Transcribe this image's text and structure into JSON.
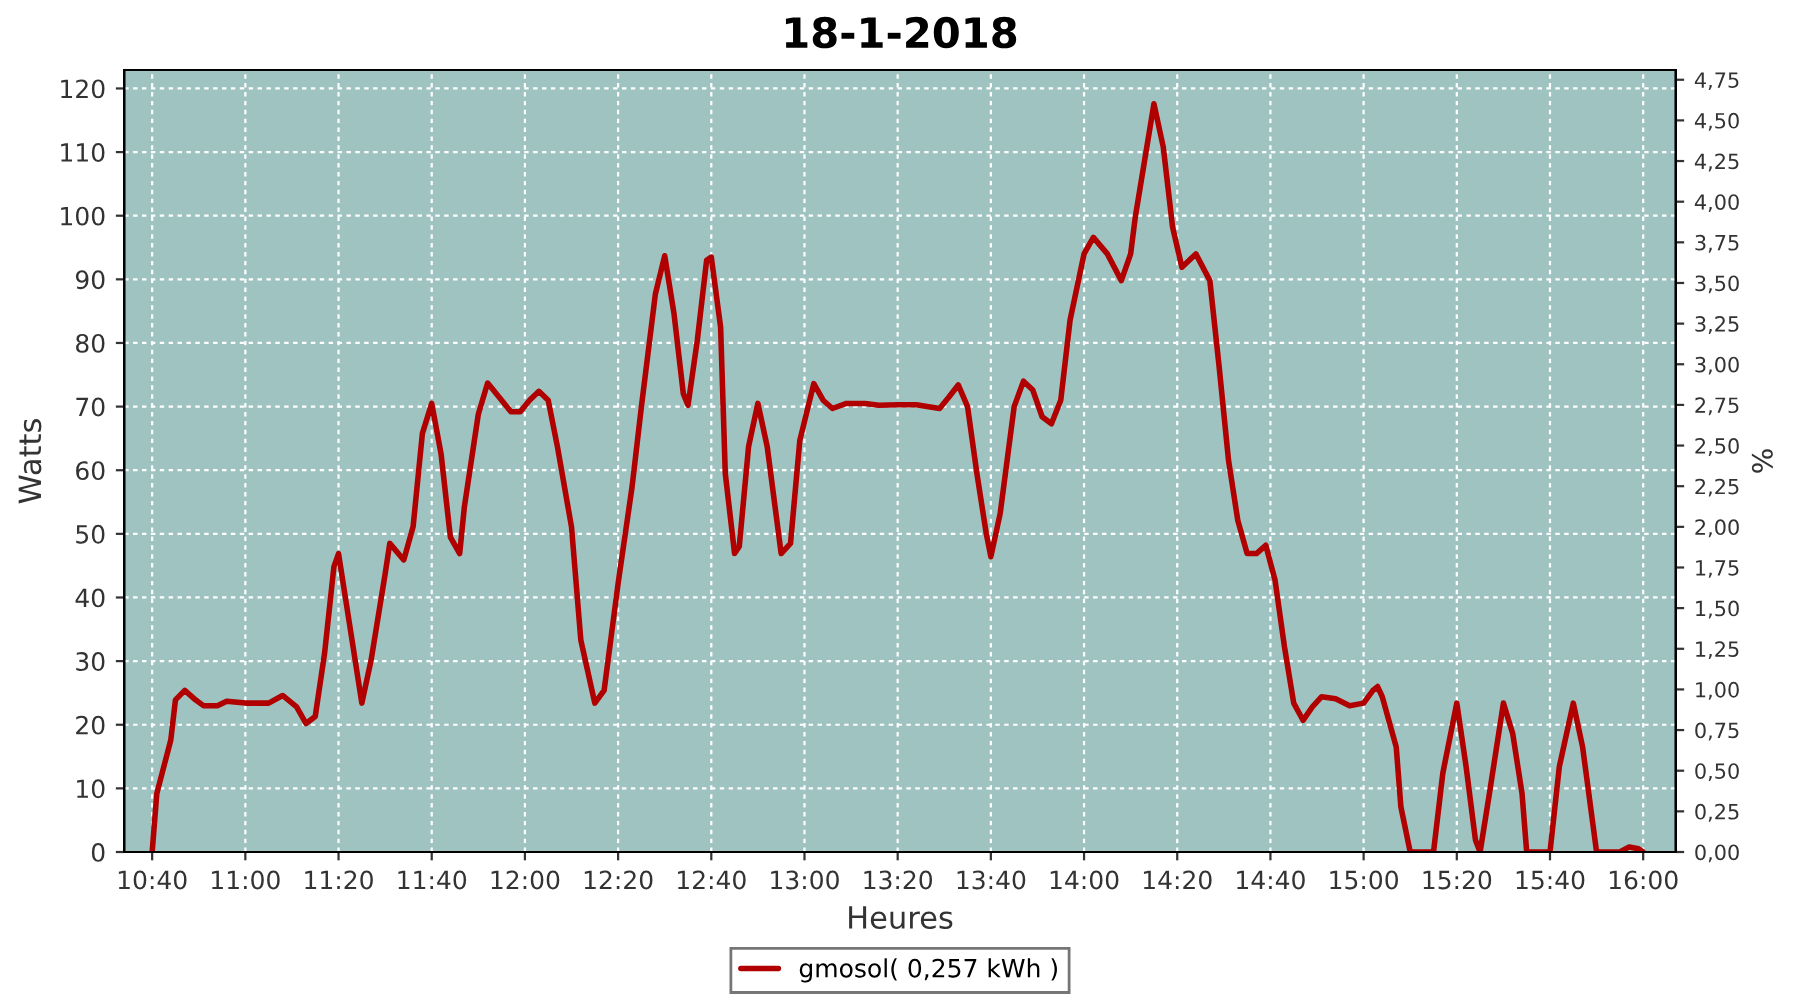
{
  "chart_data": {
    "type": "line",
    "title": "18-1-2018",
    "xlabel": "Heures",
    "ylabel": "Watts",
    "y2label": "%",
    "x": [
      "2018-01-18T10:40",
      "2018-01-18T10:41",
      "2018-01-18T10:44",
      "2018-01-18T10:45",
      "2018-01-18T10:47",
      "2018-01-18T10:49",
      "2018-01-18T10:51",
      "2018-01-18T10:54",
      "2018-01-18T10:56",
      "2018-01-18T11:00",
      "2018-01-18T11:05",
      "2018-01-18T11:08",
      "2018-01-18T11:11",
      "2018-01-18T11:13",
      "2018-01-18T11:15",
      "2018-01-18T11:17",
      "2018-01-18T11:19",
      "2018-01-18T11:20",
      "2018-01-18T11:22",
      "2018-01-18T11:25",
      "2018-01-18T11:27",
      "2018-01-18T11:30",
      "2018-01-18T11:31",
      "2018-01-18T11:34",
      "2018-01-18T11:36",
      "2018-01-18T11:38",
      "2018-01-18T11:40",
      "2018-01-18T11:42",
      "2018-01-18T11:44",
      "2018-01-18T11:46",
      "2018-01-18T11:47",
      "2018-01-18T11:50",
      "2018-01-18T11:52",
      "2018-01-18T11:55",
      "2018-01-18T11:57",
      "2018-01-18T11:59",
      "2018-01-18T12:01",
      "2018-01-18T12:03",
      "2018-01-18T12:05",
      "2018-01-18T12:07",
      "2018-01-18T12:10",
      "2018-01-18T12:12",
      "2018-01-18T12:15",
      "2018-01-18T12:17",
      "2018-01-18T12:20",
      "2018-01-18T12:23",
      "2018-01-18T12:25",
      "2018-01-18T12:28",
      "2018-01-18T12:30",
      "2018-01-18T12:32",
      "2018-01-18T12:34",
      "2018-01-18T12:35",
      "2018-01-18T12:37",
      "2018-01-18T12:39",
      "2018-01-18T12:40",
      "2018-01-18T12:42",
      "2018-01-18T12:43",
      "2018-01-18T12:45",
      "2018-01-18T12:46",
      "2018-01-18T12:48",
      "2018-01-18T12:50",
      "2018-01-18T12:52",
      "2018-01-18T12:55",
      "2018-01-18T12:57",
      "2018-01-18T12:59",
      "2018-01-18T13:02",
      "2018-01-18T13:04",
      "2018-01-18T13:06",
      "2018-01-18T13:09",
      "2018-01-18T13:13",
      "2018-01-18T13:16",
      "2018-01-18T13:20",
      "2018-01-18T13:24",
      "2018-01-18T13:29",
      "2018-01-18T13:31",
      "2018-01-18T13:33",
      "2018-01-18T13:35",
      "2018-01-18T13:37",
      "2018-01-18T13:39",
      "2018-01-18T13:40",
      "2018-01-18T13:42",
      "2018-01-18T13:45",
      "2018-01-18T13:47",
      "2018-01-18T13:49",
      "2018-01-18T13:51",
      "2018-01-18T13:53",
      "2018-01-18T13:55",
      "2018-01-18T13:57",
      "2018-01-18T14:00",
      "2018-01-18T14:02",
      "2018-01-18T14:05",
      "2018-01-18T14:08",
      "2018-01-18T14:10",
      "2018-01-18T14:11",
      "2018-01-18T14:15",
      "2018-01-18T14:17",
      "2018-01-18T14:19",
      "2018-01-18T14:21",
      "2018-01-18T14:24",
      "2018-01-18T14:27",
      "2018-01-18T14:29",
      "2018-01-18T14:31",
      "2018-01-18T14:33",
      "2018-01-18T14:35",
      "2018-01-18T14:37",
      "2018-01-18T14:39",
      "2018-01-18T14:41",
      "2018-01-18T14:43",
      "2018-01-18T14:45",
      "2018-01-18T14:47",
      "2018-01-18T14:49",
      "2018-01-18T14:51",
      "2018-01-18T14:54",
      "2018-01-18T14:57",
      "2018-01-18T15:00",
      "2018-01-18T15:02",
      "2018-01-18T15:03",
      "2018-01-18T15:04",
      "2018-01-18T15:07",
      "2018-01-18T15:08",
      "2018-01-18T15:10",
      "2018-01-18T15:15",
      "2018-01-18T15:17",
      "2018-01-18T15:20",
      "2018-01-18T15:22",
      "2018-01-18T15:24",
      "2018-01-18T15:25",
      "2018-01-18T15:27",
      "2018-01-18T15:30",
      "2018-01-18T15:32",
      "2018-01-18T15:34",
      "2018-01-18T15:35",
      "2018-01-18T15:40",
      "2018-01-18T15:42",
      "2018-01-18T15:45",
      "2018-01-18T15:47",
      "2018-01-18T15:50",
      "2018-01-18T15:55",
      "2018-01-18T15:57",
      "2018-01-18T15:59",
      "2018-01-18T16:00"
    ],
    "series": [
      {
        "name": "gmosol( 0,257 kWh )",
        "color": "#b00000",
        "values": [
          0,
          9.2,
          17.6,
          23.9,
          25.4,
          24.1,
          23,
          23,
          23.7,
          23.4,
          23.4,
          24.6,
          22.8,
          20.2,
          21.3,
          31.2,
          44.8,
          46.9,
          37.5,
          23.4,
          30.2,
          43.7,
          48.5,
          45.9,
          51.1,
          65.8,
          70.5,
          62.6,
          49.5,
          46.9,
          54.2,
          68.8,
          73.7,
          71,
          69.2,
          69.2,
          71,
          72.4,
          71,
          63.6,
          51.1,
          33.3,
          23.4,
          25.4,
          42.2,
          57.4,
          70,
          87.7,
          93.7,
          84.6,
          72,
          70.2,
          80.4,
          93,
          93.5,
          82.5,
          59.5,
          46.9,
          48,
          63.7,
          70.5,
          63.7,
          46.9,
          48.5,
          64.7,
          73.6,
          71,
          69.7,
          70.5,
          70.5,
          70.2,
          70.3,
          70.3,
          69.7,
          71.5,
          73.4,
          70,
          59.5,
          50.1,
          46.4,
          53.2,
          70,
          74,
          72.6,
          68.4,
          67.3,
          71,
          83.6,
          94,
          96.6,
          94,
          89.8,
          94,
          99.8,
          117.6,
          110.8,
          98.2,
          91.9,
          94,
          89.8,
          76.2,
          61.6,
          52.1,
          46.9,
          46.9,
          48.2,
          42.7,
          32.3,
          23.4,
          20.7,
          22.8,
          24.4,
          24.1,
          23,
          23.4,
          25.4,
          26,
          24.4,
          16.5,
          7.1,
          0,
          0,
          12.4,
          23.4,
          13.4,
          1.9,
          0,
          9.2,
          23.4,
          18.6,
          9.2,
          0,
          0,
          13.4,
          23.4,
          16.5,
          0,
          0,
          0.8,
          0.5,
          0
        ]
      }
    ],
    "xlim": [
      "2018-01-18T10:34",
      "2018-01-18T16:07"
    ],
    "xticks": [
      {
        "value": "2018-01-18T10:40",
        "label": "10:40"
      },
      {
        "value": "2018-01-18T11:00",
        "label": "11:00"
      },
      {
        "value": "2018-01-18T11:20",
        "label": "11:20"
      },
      {
        "value": "2018-01-18T11:40",
        "label": "11:40"
      },
      {
        "value": "2018-01-18T12:00",
        "label": "12:00"
      },
      {
        "value": "2018-01-18T12:20",
        "label": "12:20"
      },
      {
        "value": "2018-01-18T12:40",
        "label": "12:40"
      },
      {
        "value": "2018-01-18T13:00",
        "label": "13:00"
      },
      {
        "value": "2018-01-18T13:20",
        "label": "13:20"
      },
      {
        "value": "2018-01-18T13:40",
        "label": "13:40"
      },
      {
        "value": "2018-01-18T14:00",
        "label": "14:00"
      },
      {
        "value": "2018-01-18T14:20",
        "label": "14:20"
      },
      {
        "value": "2018-01-18T14:40",
        "label": "14:40"
      },
      {
        "value": "2018-01-18T15:00",
        "label": "15:00"
      },
      {
        "value": "2018-01-18T15:20",
        "label": "15:20"
      },
      {
        "value": "2018-01-18T15:40",
        "label": "15:40"
      },
      {
        "value": "2018-01-18T16:00",
        "label": "16:00"
      }
    ],
    "ylim": [
      0,
      122.9
    ],
    "yticks": [
      0,
      10,
      20,
      30,
      40,
      50,
      60,
      70,
      80,
      90,
      100,
      110,
      120
    ],
    "y2lim": [
      0,
      4.81
    ],
    "y2ticks": [
      {
        "value": 0,
        "label": "0,00"
      },
      {
        "value": 0.25,
        "label": "0,25"
      },
      {
        "value": 0.5,
        "label": "0,50"
      },
      {
        "value": 0.75,
        "label": "0,75"
      },
      {
        "value": 1,
        "label": "1,00"
      },
      {
        "value": 1.25,
        "label": "1,25"
      },
      {
        "value": 1.5,
        "label": "1,50"
      },
      {
        "value": 1.75,
        "label": "1,75"
      },
      {
        "value": 2,
        "label": "2,00"
      },
      {
        "value": 2.25,
        "label": "2,25"
      },
      {
        "value": 2.5,
        "label": "2,50"
      },
      {
        "value": 2.75,
        "label": "2,75"
      },
      {
        "value": 3,
        "label": "3,00"
      },
      {
        "value": 3.25,
        "label": "3,25"
      },
      {
        "value": 3.5,
        "label": "3,50"
      },
      {
        "value": 3.75,
        "label": "3,75"
      },
      {
        "value": 4,
        "label": "4,00"
      },
      {
        "value": 4.25,
        "label": "4,25"
      },
      {
        "value": 4.5,
        "label": "4,50"
      },
      {
        "value": 4.75,
        "label": "4,75"
      }
    ],
    "grid": true,
    "legend": "bottom",
    "line_style": "solid",
    "marker": "none"
  }
}
